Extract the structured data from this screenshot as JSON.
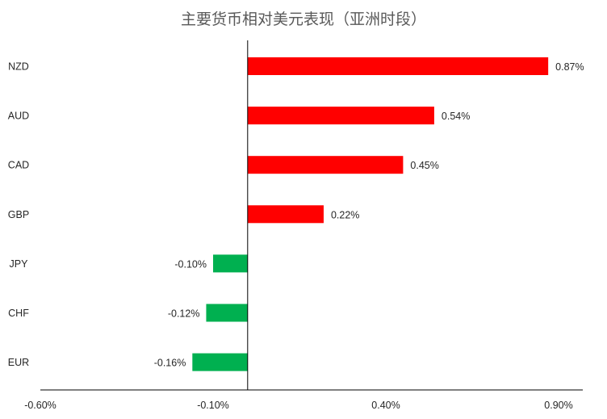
{
  "chart_data": {
    "type": "bar",
    "orientation": "horizontal",
    "title": "主要货币相对美元表现（亚洲时段）",
    "categories": [
      "NZD",
      "AUD",
      "CAD",
      "GBP",
      "JPY",
      "CHF",
      "EUR"
    ],
    "values": [
      0.87,
      0.54,
      0.45,
      0.22,
      -0.1,
      -0.12,
      -0.16
    ],
    "value_labels": [
      "0.87%",
      "0.54%",
      "0.45%",
      "0.22%",
      "-0.10%",
      "-0.12%",
      "-0.16%"
    ],
    "xlim": [
      -0.6,
      0.9
    ],
    "x_ticks": [
      -0.6,
      -0.1,
      0.4,
      0.9
    ],
    "x_tick_labels": [
      "-0.60%",
      "-0.10%",
      "0.40%",
      "0.90%"
    ],
    "xlabel": "",
    "ylabel": "",
    "grid": false,
    "colors": {
      "positive": "#ff0000",
      "negative": "#00b050",
      "axis": "#000000",
      "title": "#595959",
      "text": "#262626"
    }
  }
}
